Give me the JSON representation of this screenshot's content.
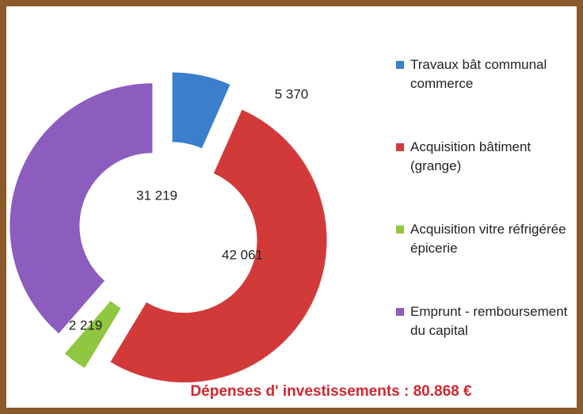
{
  "chart_data": {
    "type": "doughnut",
    "title": "Dépenses d' investissements : 80.868 €",
    "categories": [
      "Travaux bât communal commerce",
      "Acquisition bâtiment (grange)",
      "Acquisition vitre réfrigérée épicerie",
      "Emprunt - remboursement du capital"
    ],
    "values": [
      5370,
      42061,
      2219,
      31219
    ],
    "value_labels": [
      "5 370",
      "42 061",
      "2 219",
      "31 219"
    ],
    "colors": [
      "#3b7fcc",
      "#d23a3a",
      "#8fc741",
      "#8c5cbf"
    ],
    "legend": "right"
  }
}
